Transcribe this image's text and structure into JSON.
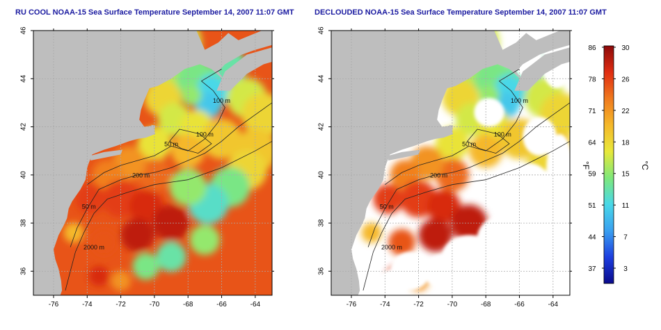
{
  "panels": [
    {
      "title": "RU COOL NOAA-15 Sea Surface Temperature September 14, 2007 11:07 GMT",
      "type": "raw"
    },
    {
      "title": "DECLOUDED NOAA-15 Sea Surface Temperature September 14, 2007 11:07 GMT",
      "type": "declouded"
    }
  ],
  "axes": {
    "lon_ticks": [
      "-76",
      "-74",
      "-72",
      "-70",
      "-68",
      "-66",
      "-64"
    ],
    "lat_ticks": [
      "36",
      "38",
      "40",
      "42",
      "44",
      "46"
    ],
    "lon_range": [
      -77.2,
      -63.0
    ],
    "lat_range": [
      35.0,
      46.0
    ]
  },
  "contour_labels": [
    {
      "text": "100 m",
      "lon": -66.0,
      "lat": 43.0
    },
    {
      "text": "100 m",
      "lon": -67.0,
      "lat": 41.6
    },
    {
      "text": "50 m",
      "lon": -69.0,
      "lat": 41.2
    },
    {
      "text": "200 m",
      "lon": -70.8,
      "lat": 39.9
    },
    {
      "text": "50 m",
      "lon": -73.9,
      "lat": 38.6
    },
    {
      "text": "2000 m",
      "lon": -73.6,
      "lat": 36.9
    }
  ],
  "colorbar": {
    "fahrenheit_label": "°F",
    "celsius_label": "°C",
    "fahrenheit_ticks": [
      "86",
      "78",
      "71",
      "64",
      "59",
      "51",
      "44",
      "37"
    ],
    "celsius_ticks": [
      "30",
      "26",
      "22",
      "18",
      "15",
      "11",
      "7",
      "3"
    ],
    "range_c": [
      0,
      30
    ],
    "colors": [
      "#0a0a8c",
      "#1d3fe0",
      "#3aa0f0",
      "#49d8e8",
      "#7fe87a",
      "#e8e83a",
      "#f5b82a",
      "#f07a1e",
      "#e02d12",
      "#8c0a0a"
    ]
  },
  "colors": {
    "land": "#bebebe",
    "cloud": "#ffffff",
    "title": "#1a1aa0",
    "grid": "#aaaaaa"
  }
}
